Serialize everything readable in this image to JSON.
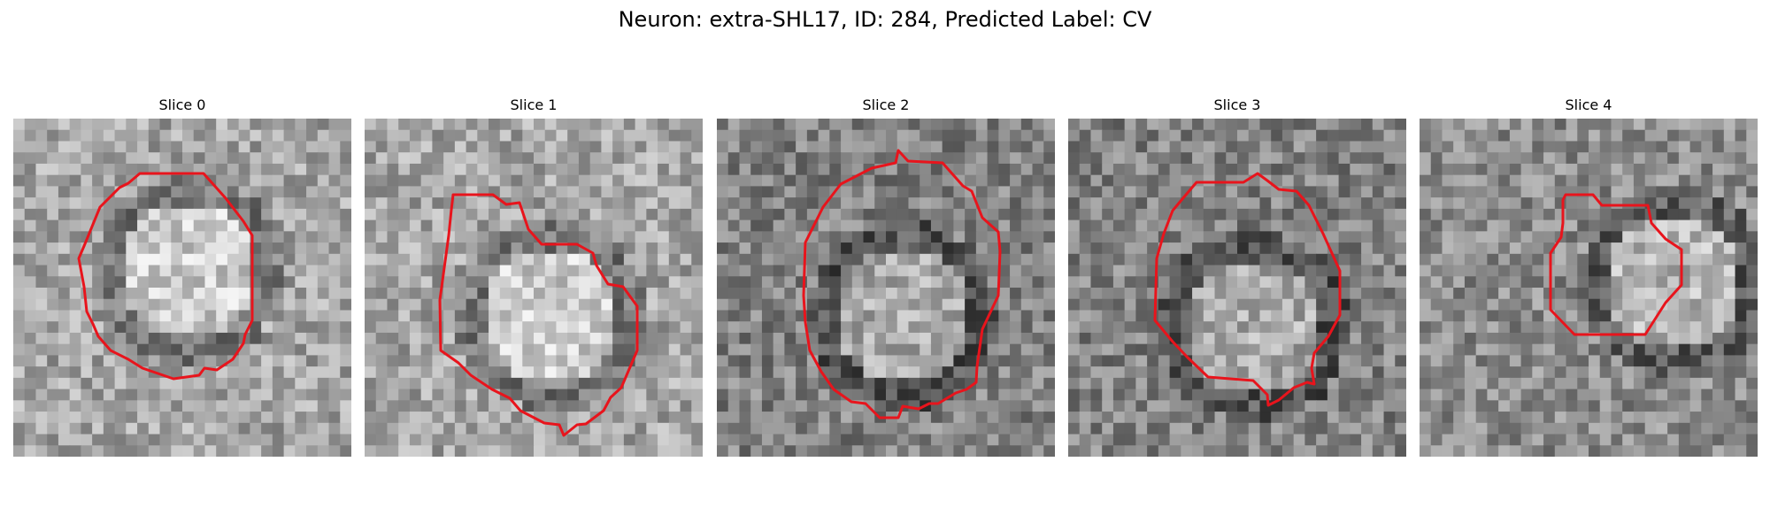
{
  "figure": {
    "title": "Neuron: extra-SHL17, ID: 284, Predicted Label: CV",
    "colormap": "grayscale",
    "contour_color": "#e8141c"
  },
  "panels": [
    {
      "title": "Slice 0",
      "brightness": "bright",
      "contour": "circle"
    },
    {
      "title": "Slice 1",
      "brightness": "bright",
      "contour": "notched"
    },
    {
      "title": "Slice 2",
      "brightness": "medium",
      "contour": "tall"
    },
    {
      "title": "Slice 3",
      "brightness": "medium",
      "contour": "octagon"
    },
    {
      "title": "Slice 4",
      "brightness": "dark",
      "contour": "small"
    }
  ]
}
